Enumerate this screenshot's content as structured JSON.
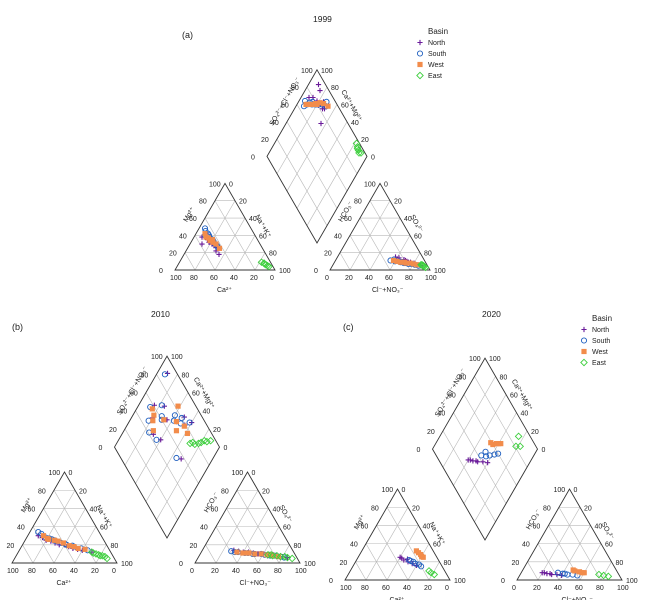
{
  "chart_data": [
    {
      "type": "scatter",
      "subtype": "piper-diagram",
      "panel": "(a)",
      "title": "1999",
      "legend": {
        "title": "Basin",
        "placement": "top-right"
      },
      "cation_axes": {
        "left": "Mg²⁺",
        "right": "Na⁺+K⁺",
        "bottom": "Ca²⁺"
      },
      "anion_axes": {
        "left": "HCO₃⁻",
        "right": "SO₄²⁻",
        "bottom": "Cl⁻+NO₃⁻"
      },
      "diamond_axes": {
        "upper_left": "SO₄²⁻+Cl⁻+NO₃⁻",
        "upper_right": "Ca²⁺+Mg²⁺"
      },
      "tick_labels": [
        "0",
        "20",
        "40",
        "60",
        "80",
        "100"
      ],
      "series": [
        {
          "name": "North",
          "marker": "plus",
          "color": "#6a1b9a",
          "cation": [
            [
              12,
              30
            ],
            [
              18,
              32
            ],
            [
              25,
              28
            ],
            [
              8,
              38
            ],
            [
              30,
              22
            ],
            [
              15,
              35
            ],
            [
              22,
              30
            ],
            [
              35,
              18
            ],
            [
              10,
              42
            ],
            [
              28,
              26
            ]
          ],
          "anion": [
            [
              68,
              12
            ],
            [
              72,
              10
            ],
            [
              80,
              8
            ],
            [
              62,
              14
            ],
            [
              76,
              9
            ],
            [
              85,
              6
            ],
            [
              70,
              11
            ],
            [
              58,
              15
            ],
            [
              88,
              5
            ],
            [
              74,
              9
            ]
          ]
        },
        {
          "name": "South",
          "marker": "circle",
          "color": "#1f5fbf",
          "cation": [
            [
              10,
              40
            ],
            [
              15,
              38
            ],
            [
              20,
              35
            ],
            [
              8,
              45
            ],
            [
              25,
              30
            ],
            [
              12,
              42
            ],
            [
              18,
              36
            ],
            [
              30,
              26
            ],
            [
              6,
              48
            ],
            [
              22,
              33
            ],
            [
              14,
              40
            ],
            [
              28,
              28
            ]
          ],
          "anion": [
            [
              60,
              10
            ],
            [
              66,
              9
            ],
            [
              72,
              8
            ],
            [
              55,
              11
            ],
            [
              78,
              7
            ],
            [
              64,
              10
            ],
            [
              70,
              8
            ],
            [
              82,
              6
            ],
            [
              58,
              12
            ],
            [
              75,
              7
            ],
            [
              68,
              9
            ],
            [
              86,
              5
            ]
          ]
        },
        {
          "name": "West",
          "marker": "square",
          "color": "#f28c4b",
          "cation": [
            [
              12,
              38
            ],
            [
              18,
              34
            ],
            [
              22,
              32
            ],
            [
              9,
              42
            ],
            [
              26,
              30
            ],
            [
              15,
              37
            ],
            [
              20,
              35
            ],
            [
              32,
              25
            ]
          ],
          "anion": [
            [
              62,
              10
            ],
            [
              70,
              9
            ],
            [
              76,
              8
            ],
            [
              58,
              11
            ],
            [
              80,
              7
            ],
            [
              66,
              9
            ],
            [
              72,
              8
            ],
            [
              84,
              6
            ]
          ]
        },
        {
          "name": "East",
          "marker": "diamond",
          "color": "#3ecf3e",
          "cation": [
            [
              88,
              6
            ],
            [
              85,
              8
            ],
            [
              90,
              5
            ],
            [
              82,
              9
            ],
            [
              92,
              4
            ],
            [
              86,
              7
            ]
          ],
          "anion": [
            [
              90,
              5
            ],
            [
              92,
              4
            ],
            [
              88,
              6
            ],
            [
              94,
              3
            ],
            [
              91,
              5
            ],
            [
              89,
              6
            ]
          ]
        }
      ]
    },
    {
      "type": "scatter",
      "subtype": "piper-diagram",
      "panel": "(b)",
      "title": "2010",
      "cation_axes": {
        "left": "Mg²⁺",
        "right": "Na⁺+K⁺",
        "bottom": "Ca²⁺"
      },
      "anion_axes": {
        "left": "HCO₃⁻",
        "right": "SO₄²⁻",
        "bottom": "Cl⁻+NO₃⁻"
      },
      "diamond_axes": {
        "upper_left": "SO₄²⁻+Cl⁻+NO₃⁻",
        "upper_right": "Ca²⁺+Mg²⁺"
      },
      "tick_labels": [
        "0",
        "20",
        "40",
        "60",
        "80",
        "100"
      ],
      "series": [
        {
          "name": "North",
          "marker": "plus",
          "color": "#6a1b9a",
          "cation": [
            [
              20,
              25
            ],
            [
              35,
              20
            ],
            [
              45,
              18
            ],
            [
              30,
              22
            ],
            [
              55,
              15
            ],
            [
              15,
              28
            ],
            [
              60,
              14
            ],
            [
              40,
              20
            ],
            [
              25,
              24
            ],
            [
              50,
              16
            ],
            [
              70,
              12
            ],
            [
              10,
              30
            ]
          ],
          "anion": [
            [
              40,
              12
            ],
            [
              55,
              10
            ],
            [
              65,
              8
            ],
            [
              30,
              14
            ],
            [
              70,
              9
            ],
            [
              50,
              11
            ],
            [
              80,
              7
            ],
            [
              35,
              13
            ],
            [
              60,
              10
            ],
            [
              75,
              8
            ],
            [
              45,
              12
            ],
            [
              85,
              6
            ]
          ]
        },
        {
          "name": "South",
          "marker": "circle",
          "color": "#1f5fbf",
          "cation": [
            [
              18,
              28
            ],
            [
              30,
              24
            ],
            [
              42,
              20
            ],
            [
              25,
              26
            ],
            [
              50,
              18
            ],
            [
              12,
              32
            ],
            [
              58,
              16
            ],
            [
              36,
              22
            ],
            [
              22,
              27
            ],
            [
              48,
              19
            ],
            [
              65,
              14
            ],
            [
              8,
              34
            ],
            [
              28,
              25
            ],
            [
              40,
              21
            ]
          ],
          "anion": [
            [
              35,
              12
            ],
            [
              50,
              10
            ],
            [
              62,
              9
            ],
            [
              28,
              13
            ],
            [
              68,
              8
            ],
            [
              45,
              11
            ],
            [
              78,
              7
            ],
            [
              32,
              12
            ],
            [
              58,
              10
            ],
            [
              72,
              8
            ],
            [
              42,
              11
            ],
            [
              82,
              6
            ],
            [
              52,
              10
            ],
            [
              66,
              9
            ]
          ]
        },
        {
          "name": "West",
          "marker": "square",
          "color": "#f28c4b",
          "cation": [
            [
              22,
              26
            ],
            [
              32,
              24
            ],
            [
              45,
              19
            ],
            [
              28,
              25
            ],
            [
              55,
              16
            ],
            [
              15,
              30
            ],
            [
              38,
              22
            ],
            [
              50,
              18
            ],
            [
              62,
              15
            ],
            [
              20,
              27
            ]
          ],
          "anion": [
            [
              40,
              11
            ],
            [
              52,
              10
            ],
            [
              64,
              9
            ],
            [
              34,
              12
            ],
            [
              70,
              8
            ],
            [
              46,
              11
            ],
            [
              76,
              7
            ],
            [
              58,
              10
            ],
            [
              68,
              9
            ],
            [
              44,
              11
            ]
          ]
        },
        {
          "name": "East",
          "marker": "diamond",
          "color": "#3ecf3e",
          "cation": [
            [
              75,
              10
            ],
            [
              80,
              8
            ],
            [
              70,
              12
            ],
            [
              85,
              7
            ],
            [
              78,
              9
            ],
            [
              88,
              5
            ],
            [
              72,
              11
            ],
            [
              82,
              8
            ]
          ],
          "anion": [
            [
              70,
              8
            ],
            [
              78,
              7
            ],
            [
              65,
              9
            ],
            [
              85,
              6
            ],
            [
              74,
              8
            ],
            [
              90,
              5
            ],
            [
              68,
              9
            ],
            [
              82,
              7
            ]
          ]
        }
      ]
    },
    {
      "type": "scatter",
      "subtype": "piper-diagram",
      "panel": "(c)",
      "title": "2020",
      "legend": {
        "title": "Basin",
        "placement": "top-right"
      },
      "cation_axes": {
        "left": "Mg²⁺",
        "right": "Na⁺+K⁺",
        "bottom": "Ca²⁺"
      },
      "anion_axes": {
        "left": "HCO₃⁻",
        "right": "SO₄²⁻",
        "bottom": "Cl⁻+NO₃⁻"
      },
      "diamond_axes": {
        "upper_left": "SO₄²⁻+Cl⁻+NO₃⁻",
        "upper_right": "Ca²⁺+Mg²⁺"
      },
      "tick_labels": [
        "0",
        "20",
        "40",
        "60",
        "80",
        "100"
      ],
      "series": [
        {
          "name": "North",
          "marker": "plus",
          "color": "#6a1b9a",
          "cation": [
            [
              40,
              25
            ],
            [
              45,
              22
            ],
            [
              50,
              20
            ],
            [
              55,
              18
            ],
            [
              48,
              23
            ],
            [
              60,
              16
            ],
            [
              42,
              24
            ]
          ],
          "anion": [
            [
              20,
              8
            ],
            [
              25,
              7
            ],
            [
              30,
              6
            ],
            [
              35,
              6
            ],
            [
              28,
              7
            ],
            [
              40,
              5
            ],
            [
              22,
              8
            ]
          ]
        },
        {
          "name": "South",
          "marker": "circle",
          "color": "#1f5fbf",
          "cation": [
            [
              50,
              22
            ],
            [
              55,
              20
            ],
            [
              58,
              18
            ],
            [
              62,
              17
            ],
            [
              52,
              21
            ],
            [
              65,
              15
            ]
          ],
          "anion": [
            [
              35,
              8
            ],
            [
              40,
              7
            ],
            [
              45,
              6
            ],
            [
              50,
              6
            ],
            [
              42,
              7
            ],
            [
              55,
              5
            ]
          ]
        },
        {
          "name": "West",
          "marker": "square",
          "color": "#f28c4b",
          "cation": [
            [
              55,
              30
            ],
            [
              58,
              28
            ],
            [
              60,
              26
            ],
            [
              52,
              32
            ],
            [
              62,
              25
            ]
          ],
          "anion": [
            [
              50,
              10
            ],
            [
              55,
              9
            ],
            [
              58,
              8
            ],
            [
              48,
              11
            ],
            [
              60,
              8
            ]
          ]
        },
        {
          "name": "East",
          "marker": "diamond",
          "color": "#3ecf3e",
          "cation": [
            [
              78,
              8
            ],
            [
              82,
              6
            ],
            [
              75,
              10
            ]
          ],
          "anion": [
            [
              75,
              6
            ],
            [
              80,
              5
            ],
            [
              85,
              4
            ]
          ]
        }
      ]
    }
  ]
}
